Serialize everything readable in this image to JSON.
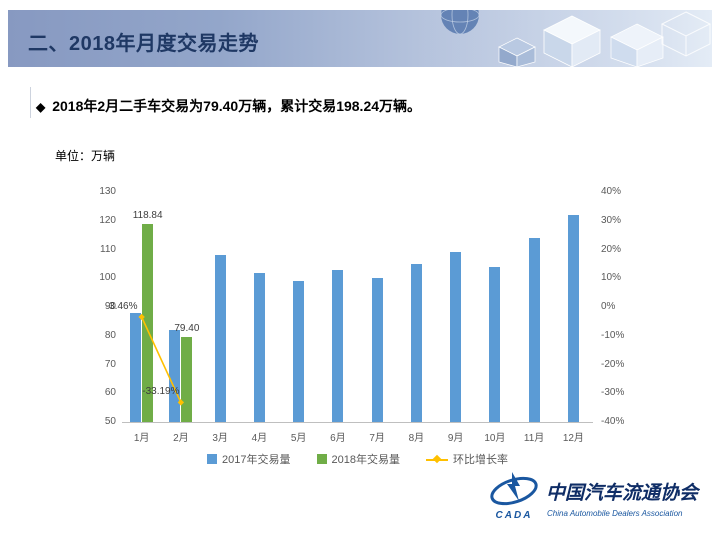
{
  "slide": {
    "title": "二、2018年月度交易走势",
    "bullet_marker": "◆",
    "bullet": "2018年2月二手车交易为79.40万辆，累计交易198.24万辆。",
    "unit_label": "单位：万辆"
  },
  "chart_data": {
    "type": "bar+line",
    "title": "",
    "xlabel": "",
    "ylabel": "万辆",
    "categories": [
      "1月",
      "2月",
      "3月",
      "4月",
      "5月",
      "6月",
      "7月",
      "8月",
      "9月",
      "10月",
      "11月",
      "12月"
    ],
    "series": [
      {
        "name": "2017年交易量",
        "type": "bar",
        "axis": "left",
        "color": "#5B9BD5",
        "values": [
          88,
          82,
          108,
          102,
          99,
          103,
          100,
          105,
          109,
          104,
          114,
          122
        ]
      },
      {
        "name": "2018年交易量",
        "type": "bar",
        "axis": "left",
        "color": "#70AD47",
        "values": [
          118.84,
          79.4,
          null,
          null,
          null,
          null,
          null,
          null,
          null,
          null,
          null,
          null
        ],
        "data_labels": [
          "118.84",
          "79.40",
          null,
          null,
          null,
          null,
          null,
          null,
          null,
          null,
          null,
          null
        ]
      },
      {
        "name": "环比增长率",
        "type": "line",
        "axis": "right",
        "color": "#FFC000",
        "values": [
          -3.46,
          -33.19,
          null,
          null,
          null,
          null,
          null,
          null,
          null,
          null,
          null,
          null
        ],
        "data_labels": [
          "-3.46%",
          "-33.19%",
          null,
          null,
          null,
          null,
          null,
          null,
          null,
          null,
          null,
          null
        ]
      }
    ],
    "left_axis": {
      "min": 50,
      "max": 130,
      "step": 10
    },
    "right_axis": {
      "min": -40,
      "max": 40,
      "step": 10,
      "suffix": "%"
    },
    "legend_position": "bottom",
    "gridlines": false
  },
  "logo": {
    "acronym": "CADA",
    "name_cn": "中国汽车流通协会",
    "name_en": "China Automobile Dealers Association"
  }
}
